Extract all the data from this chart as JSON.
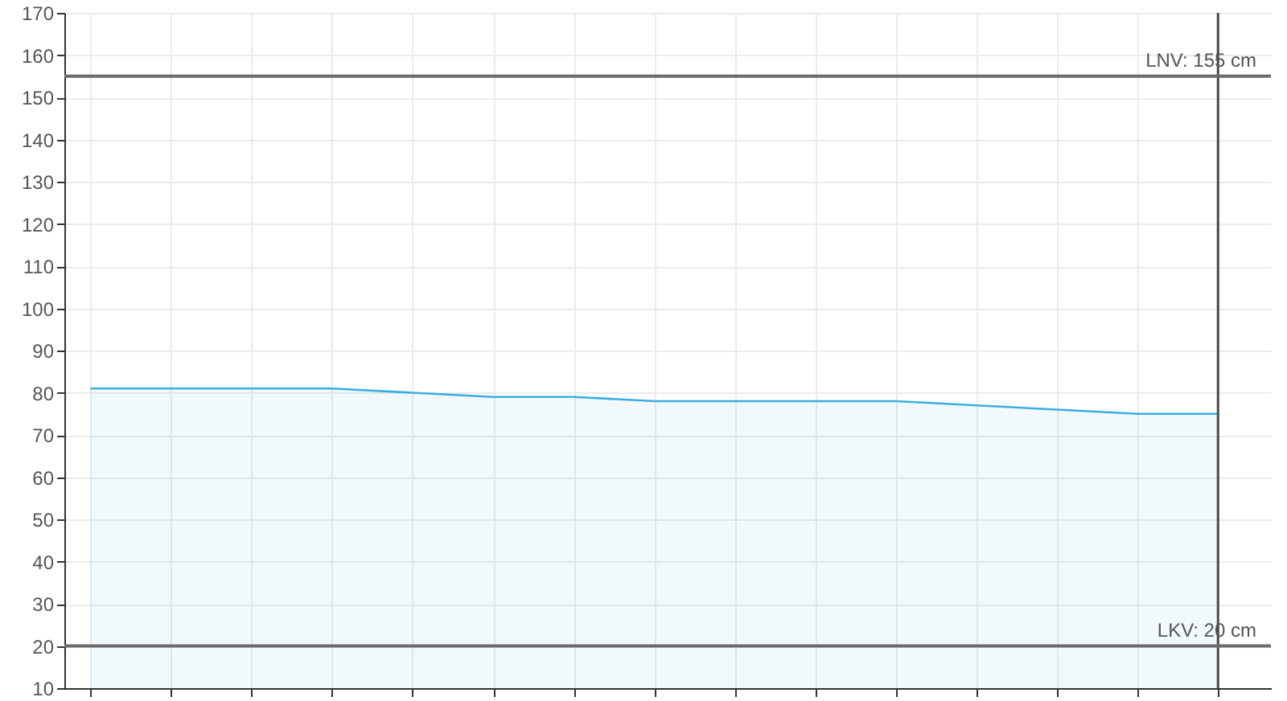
{
  "chart_data": {
    "type": "area",
    "categories": [
      null,
      null,
      null,
      null,
      null,
      null,
      null,
      null,
      null,
      null,
      null,
      null,
      null,
      null,
      null
    ],
    "series": [
      {
        "color": "#3aaee0",
        "values": [
          81,
          81,
          81,
          81,
          80,
          79,
          79,
          78,
          78,
          78,
          78,
          77,
          76,
          75,
          75
        ]
      }
    ],
    "ylim": [
      10,
      170
    ],
    "yticks": [
      10,
      20,
      30,
      40,
      50,
      60,
      70,
      80,
      90,
      100,
      110,
      120,
      130,
      140,
      150,
      160,
      170
    ],
    "tick_labels": "y",
    "grid": true,
    "ref_lines": [
      {
        "axis": "y",
        "value": 155,
        "label": "LNV: 155 cm",
        "color": "#6b6b6b"
      },
      {
        "axis": "y",
        "value": 20,
        "label": "LKV: 20 cm",
        "color": "#6b6b6b"
      }
    ]
  }
}
